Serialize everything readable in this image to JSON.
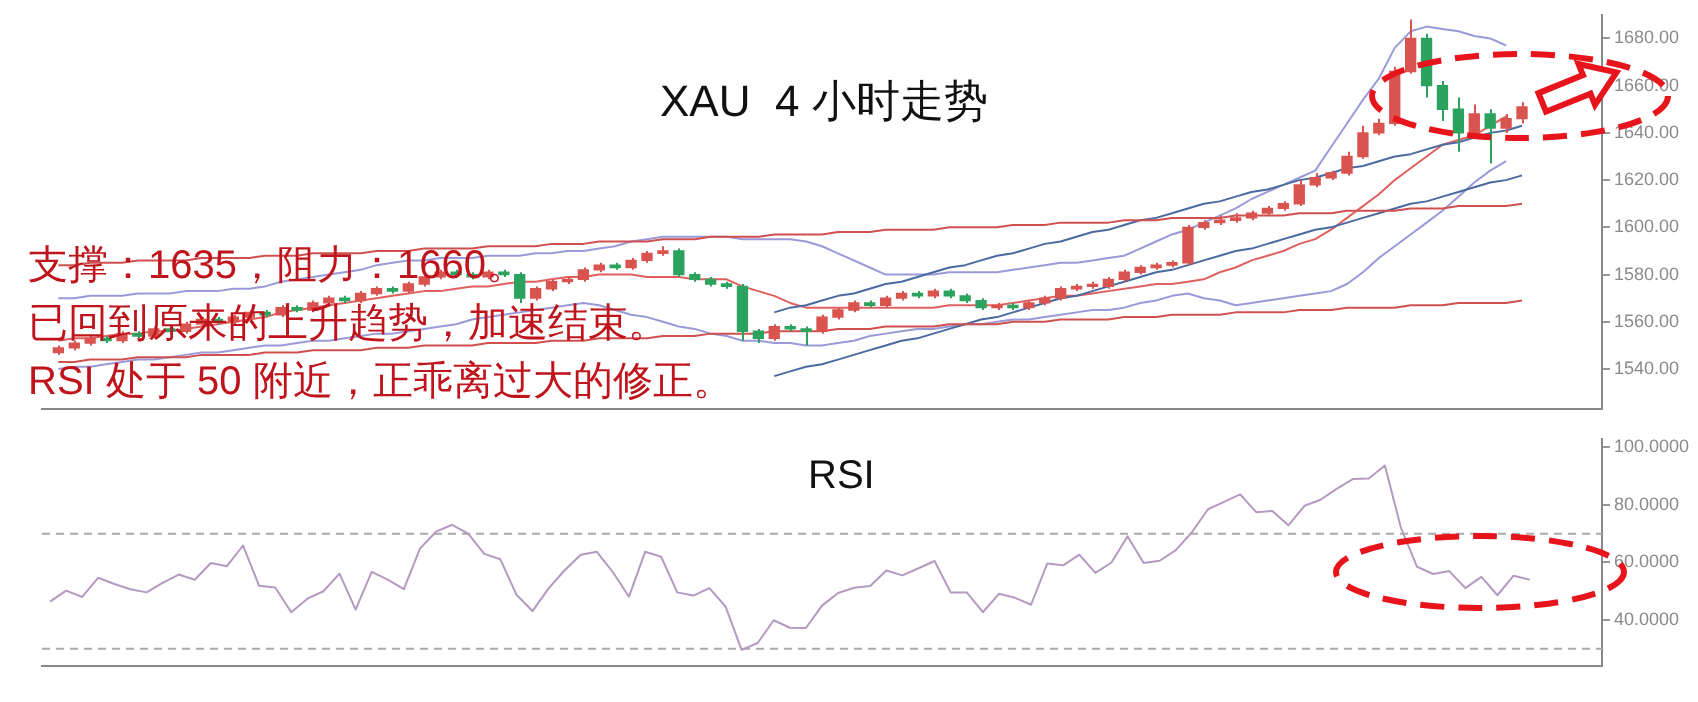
{
  "chart_data": [
    {
      "type": "candlestick",
      "title": "XAU  4 小时走势",
      "annotations": [
        "支撑：1635，阻力：1660。",
        "已回到原来的上升趋势，加速结束。",
        "RSI 处于 50 附近，正乖离过大的修正。"
      ],
      "categories": [
        null,
        null,
        null,
        null,
        null,
        null,
        null,
        null,
        null,
        null,
        null,
        null,
        null,
        null,
        null,
        null,
        null,
        null,
        null,
        null,
        null,
        null,
        null,
        null,
        null,
        null,
        null,
        null,
        null,
        null,
        null,
        null,
        null,
        null,
        null,
        null,
        null,
        null,
        null,
        null,
        null,
        null,
        null,
        null,
        null,
        null,
        null,
        null,
        null,
        null,
        null,
        null,
        null,
        null,
        null,
        null,
        null,
        null,
        null,
        null,
        null,
        null,
        null,
        null,
        null,
        null,
        null,
        null,
        null,
        null,
        null,
        null,
        null,
        null,
        null,
        null,
        null,
        null,
        null,
        null,
        null,
        null,
        null,
        null,
        null,
        null,
        null,
        null,
        null,
        null,
        null,
        null,
        null
      ],
      "ylim": [
        1523,
        1690
      ],
      "yticks": [
        {
          "value": 1540,
          "label": "1540.00"
        },
        {
          "value": 1560,
          "label": "1560.00"
        },
        {
          "value": 1580,
          "label": "1580.00"
        },
        {
          "value": 1600,
          "label": "1600.00"
        },
        {
          "value": 1620,
          "label": "1620.00"
        },
        {
          "value": 1640,
          "label": "1640.00"
        },
        {
          "value": 1660,
          "label": "1660.00"
        },
        {
          "value": 1680,
          "label": "1680.00"
        }
      ],
      "tick_labels": "y",
      "series": [
        {
          "type": "line",
          "color": "#d05050",
          "values": [
            1584,
            1584,
            1585,
            1585,
            1585,
            1586,
            1586,
            1586,
            1586,
            1587,
            1587,
            1587,
            1587,
            1588,
            1588,
            1588,
            1589,
            1589,
            1589,
            1589,
            1590,
            1590,
            1590,
            1591,
            1591,
            1591,
            1591,
            1592,
            1592,
            1592,
            1592,
            1593,
            1593,
            1593,
            1594,
            1594,
            1594,
            1594,
            1595,
            1595,
            1595,
            1596,
            1596,
            1596,
            1596,
            1597,
            1597,
            1597,
            1597,
            1598,
            1598,
            1598,
            1599,
            1599,
            1599,
            1599,
            1600,
            1600,
            1600,
            1600,
            1601,
            1601,
            1601,
            1602,
            1602,
            1602,
            1602,
            1603,
            1603,
            1603,
            1604,
            1604,
            1604,
            1604,
            1605,
            1605,
            1605,
            1605,
            1606,
            1606,
            1606,
            1607,
            1607,
            1607,
            1607,
            1608,
            1608,
            1608,
            1609,
            1609,
            1609,
            1609,
            1610
          ]
        },
        {
          "type": "line",
          "color": "#d05050",
          "values": [
            1543,
            1543,
            1544,
            1544,
            1544,
            1545,
            1545,
            1545,
            1545,
            1546,
            1546,
            1546,
            1546,
            1547,
            1547,
            1547,
            1548,
            1548,
            1548,
            1548,
            1549,
            1549,
            1549,
            1550,
            1550,
            1550,
            1550,
            1551,
            1551,
            1551,
            1551,
            1552,
            1552,
            1552,
            1553,
            1553,
            1553,
            1553,
            1554,
            1554,
            1554,
            1555,
            1555,
            1555,
            1555,
            1556,
            1556,
            1556,
            1556,
            1557,
            1557,
            1557,
            1558,
            1558,
            1558,
            1558,
            1559,
            1559,
            1559,
            1559,
            1560,
            1560,
            1560,
            1561,
            1561,
            1561,
            1561,
            1562,
            1562,
            1562,
            1563,
            1563,
            1563,
            1563,
            1564,
            1564,
            1564,
            1564,
            1565,
            1565,
            1565,
            1566,
            1566,
            1566,
            1566,
            1567,
            1567,
            1567,
            1568,
            1568,
            1568,
            1568,
            1569
          ]
        },
        {
          "type": "line",
          "color": "#4a6aa0",
          "values": [
            null,
            null,
            null,
            null,
            null,
            null,
            null,
            null,
            null,
            null,
            null,
            null,
            null,
            null,
            null,
            null,
            null,
            null,
            null,
            null,
            null,
            null,
            null,
            null,
            null,
            null,
            null,
            null,
            null,
            null,
            null,
            null,
            null,
            null,
            null,
            null,
            null,
            null,
            null,
            null,
            null,
            null,
            null,
            null,
            null,
            1564,
            1566,
            1567,
            1569,
            1571,
            1572,
            1574,
            1576,
            1577,
            1579,
            1581,
            1583,
            1584,
            1586,
            1588,
            1589,
            1591,
            1593,
            1594,
            1596,
            1598,
            1599,
            1601,
            1603,
            1604,
            1606,
            1608,
            1610,
            1611,
            1613,
            1615,
            1616,
            1618,
            1620,
            1621,
            1623,
            1625,
            1626,
            1628,
            1630,
            1631,
            1633,
            1635,
            1636,
            1638,
            1640,
            1641,
            1643
          ]
        },
        {
          "type": "line",
          "color": "#4a6aa0",
          "values": [
            null,
            null,
            null,
            null,
            null,
            null,
            null,
            null,
            null,
            null,
            null,
            null,
            null,
            null,
            null,
            null,
            null,
            null,
            null,
            null,
            null,
            null,
            null,
            null,
            null,
            null,
            null,
            null,
            null,
            null,
            null,
            null,
            null,
            null,
            null,
            null,
            null,
            null,
            null,
            null,
            null,
            null,
            null,
            null,
            null,
            1537,
            1539,
            1541,
            1542,
            1544,
            1546,
            1548,
            1550,
            1552,
            1553,
            1555,
            1557,
            1559,
            1561,
            1562,
            1564,
            1566,
            1568,
            1570,
            1571,
            1573,
            1575,
            1577,
            1579,
            1581,
            1582,
            1584,
            1586,
            1588,
            1590,
            1591,
            1593,
            1595,
            1597,
            1599,
            1600,
            1602,
            1604,
            1606,
            1608,
            1610,
            1611,
            1613,
            1615,
            1617,
            1619,
            1620,
            1622
          ]
        },
        {
          "type": "line",
          "color": "#9a9ad8",
          "values": [
            1570,
            1570,
            1571,
            1571,
            1571,
            1572,
            1572,
            1572,
            1573,
            1573,
            1573,
            1574,
            1574,
            1575,
            1577,
            1578,
            1579,
            1580,
            1581,
            1582,
            1584,
            1585,
            1586,
            1586,
            1587,
            1587,
            1587,
            1588,
            1588,
            1588,
            1589,
            1589,
            1590,
            1590,
            1591,
            1592,
            1594,
            1595,
            1596,
            1596,
            1596,
            1596,
            1596,
            1595,
            1595,
            1595,
            1595,
            1594,
            1592,
            1589,
            1586,
            1583,
            1580,
            1580,
            1580,
            1580,
            1581,
            1581,
            1581,
            1581,
            1582,
            1583,
            1584,
            1585,
            1585,
            1586,
            1587,
            1588,
            1591,
            1594,
            1597,
            1599,
            1602,
            1605,
            1608,
            1612,
            1615,
            1618,
            1621,
            1624,
            1634,
            1644,
            1654,
            1663,
            1676,
            1683,
            1685,
            1684,
            1683,
            1681,
            1680,
            1677,
            null
          ]
        },
        {
          "type": "line",
          "color": "#9a9ad8",
          "values": [
            1540,
            1541,
            1541,
            1542,
            1543,
            1544,
            1544,
            1545,
            1546,
            1547,
            1547,
            1548,
            1549,
            1550,
            1550,
            1551,
            1552,
            1552,
            1553,
            1554,
            1555,
            1555,
            1556,
            1557,
            1558,
            1559,
            1561,
            1562,
            1563,
            1564,
            1565,
            1566,
            1567,
            1568,
            1567,
            1565,
            1563,
            1562,
            1560,
            1558,
            1557,
            1555,
            1554,
            1552,
            1552,
            1551,
            1551,
            1550,
            1550,
            1551,
            1552,
            1554,
            1555,
            1556,
            1557,
            1557,
            1558,
            1559,
            1559,
            1560,
            1561,
            1561,
            1562,
            1563,
            1564,
            1565,
            1565,
            1566,
            1568,
            1569,
            1571,
            1572,
            1570,
            1569,
            1567,
            1568,
            1569,
            1570,
            1571,
            1572,
            1573,
            1576,
            1581,
            1587,
            1592,
            1597,
            1602,
            1607,
            1613,
            1619,
            1624,
            1628,
            null
          ]
        },
        {
          "type": "line",
          "color": "#e06060",
          "values": [
            1552,
            1553,
            1553,
            1554,
            1555,
            1555,
            1556,
            1556,
            1557,
            1558,
            1559,
            1560,
            1561,
            1562,
            1564,
            1565,
            1566,
            1567,
            1568,
            1569,
            1570,
            1571,
            1572,
            1573,
            1573,
            1574,
            1575,
            1575,
            1576,
            1577,
            1577,
            1578,
            1579,
            1579,
            1580,
            1580,
            1580,
            1579,
            1579,
            1579,
            1578,
            1578,
            1578,
            1575,
            1573,
            1571,
            1568,
            1566,
            1566,
            1566,
            1566,
            1566,
            1566,
            1566,
            1566,
            1566,
            1567,
            1567,
            1567,
            1567,
            1568,
            1569,
            1570,
            1571,
            1571,
            1572,
            1573,
            1574,
            1575,
            1576,
            1576,
            1577,
            1578,
            1581,
            1583,
            1586,
            1588,
            1590,
            1593,
            1595,
            1599,
            1604,
            1609,
            1614,
            1620,
            1625,
            1630,
            1635,
            1637,
            1639,
            1643,
            1647,
            null
          ]
        },
        {
          "ohlc": [
            [
              1547,
              1550,
              1546,
              1549
            ],
            [
              1549,
              1552,
              1548,
              1551
            ],
            [
              1551,
              1554,
              1550,
              1553
            ],
            [
              1553,
              1554,
              1551,
              1552
            ],
            [
              1552,
              1556,
              1551,
              1555
            ],
            [
              1555,
              1556,
              1553,
              1554
            ],
            [
              1554,
              1558,
              1553,
              1557
            ],
            [
              1557,
              1558,
              1555,
              1556
            ],
            [
              1556,
              1560,
              1555,
              1559
            ],
            [
              1559,
              1562,
              1558,
              1561
            ],
            [
              1561,
              1562,
              1559,
              1560
            ],
            [
              1560,
              1563,
              1559,
              1562
            ],
            [
              1562,
              1565,
              1561,
              1564
            ],
            [
              1564,
              1565,
              1562,
              1563
            ],
            [
              1563,
              1567,
              1562,
              1566
            ],
            [
              1566,
              1567,
              1564,
              1565
            ],
            [
              1565,
              1569,
              1564,
              1568
            ],
            [
              1568,
              1571,
              1567,
              1570
            ],
            [
              1570,
              1571,
              1568,
              1569
            ],
            [
              1569,
              1573,
              1568,
              1572
            ],
            [
              1572,
              1575,
              1571,
              1574
            ],
            [
              1574,
              1575,
              1572,
              1573
            ],
            [
              1573,
              1577,
              1572,
              1576
            ],
            [
              1576,
              1580,
              1575,
              1579
            ],
            [
              1579,
              1582,
              1578,
              1581
            ],
            [
              1581,
              1582,
              1579,
              1580
            ],
            [
              1580,
              1581,
              1578,
              1579
            ],
            [
              1579,
              1582,
              1578,
              1581
            ],
            [
              1581,
              1582,
              1579,
              1580
            ],
            [
              1580,
              1581,
              1568,
              1570
            ],
            [
              1570,
              1575,
              1569,
              1574
            ],
            [
              1574,
              1578,
              1573,
              1577
            ],
            [
              1577,
              1579,
              1576,
              1578
            ],
            [
              1578,
              1583,
              1577,
              1582
            ],
            [
              1582,
              1585,
              1581,
              1584
            ],
            [
              1584,
              1585,
              1582,
              1583
            ],
            [
              1583,
              1587,
              1582,
              1586
            ],
            [
              1586,
              1590,
              1585,
              1589
            ],
            [
              1589,
              1592,
              1588,
              1590
            ],
            [
              1590,
              1591,
              1579,
              1580
            ],
            [
              1580,
              1581,
              1577,
              1578
            ],
            [
              1578,
              1579,
              1575,
              1576
            ],
            [
              1576,
              1577,
              1574,
              1575
            ],
            [
              1575,
              1576,
              1552,
              1556
            ],
            [
              1556,
              1557,
              1551,
              1553
            ],
            [
              1553,
              1559,
              1552,
              1558
            ],
            [
              1558,
              1559,
              1556,
              1557
            ],
            [
              1557,
              1558,
              1550,
              1556
            ],
            [
              1556,
              1563,
              1555,
              1562
            ],
            [
              1562,
              1566,
              1561,
              1565
            ],
            [
              1565,
              1569,
              1564,
              1568
            ],
            [
              1568,
              1569,
              1566,
              1567
            ],
            [
              1567,
              1571,
              1566,
              1570
            ],
            [
              1570,
              1573,
              1569,
              1572
            ],
            [
              1572,
              1573,
              1570,
              1571
            ],
            [
              1571,
              1574,
              1570,
              1573
            ],
            [
              1573,
              1574,
              1570,
              1571
            ],
            [
              1571,
              1572,
              1568,
              1569
            ],
            [
              1569,
              1570,
              1565,
              1566
            ],
            [
              1566,
              1568,
              1565,
              1567
            ],
            [
              1567,
              1568,
              1565,
              1566
            ],
            [
              1566,
              1569,
              1565,
              1568
            ],
            [
              1568,
              1571,
              1567,
              1570
            ],
            [
              1570,
              1575,
              1569,
              1574
            ],
            [
              1574,
              1576,
              1573,
              1575
            ],
            [
              1575,
              1577,
              1574,
              1575
            ],
            [
              1575,
              1579,
              1574,
              1578
            ],
            [
              1578,
              1582,
              1577,
              1581
            ],
            [
              1581,
              1584,
              1580,
              1583
            ],
            [
              1583,
              1585,
              1582,
              1584
            ],
            [
              1584,
              1586,
              1583,
              1585
            ],
            [
              1585,
              1601,
              1584,
              1600
            ],
            [
              1600,
              1603,
              1599,
              1602
            ],
            [
              1602,
              1605,
              1601,
              1603
            ],
            [
              1603,
              1606,
              1602,
              1604
            ],
            [
              1604,
              1607,
              1603,
              1606
            ],
            [
              1606,
              1609,
              1605,
              1608
            ],
            [
              1608,
              1611,
              1607,
              1610
            ],
            [
              1610,
              1620,
              1609,
              1618
            ],
            [
              1618,
              1623,
              1617,
              1621
            ],
            [
              1621,
              1624,
              1620,
              1623
            ],
            [
              1623,
              1632,
              1622,
              1630
            ],
            [
              1630,
              1643,
              1629,
              1640
            ],
            [
              1640,
              1646,
              1639,
              1644
            ],
            [
              1644,
              1668,
              1643,
              1666
            ],
            [
              1666,
              1688,
              1665,
              1680
            ],
            [
              1680,
              1682,
              1655,
              1660
            ],
            [
              1660,
              1662,
              1645,
              1650
            ],
            [
              1650,
              1655,
              1632,
              1640
            ],
            [
              1640,
              1652,
              1638,
              1648
            ],
            [
              1648,
              1650,
              1627,
              1642
            ],
            [
              1642,
              1648,
              1640,
              1646
            ],
            [
              1646,
              1653,
              1644,
              1651
            ]
          ],
          "colors": [
            "#d9534f",
            "#d9534f",
            "#d9534f",
            "#2ca25f",
            "#d9534f",
            "#2ca25f",
            "#d9534f",
            "#2ca25f",
            "#d9534f",
            "#d9534f",
            "#2ca25f",
            "#d9534f",
            "#d9534f",
            "#2ca25f",
            "#d9534f",
            "#2ca25f",
            "#d9534f",
            "#d9534f",
            "#2ca25f",
            "#d9534f",
            "#d9534f",
            "#2ca25f",
            "#d9534f",
            "#d9534f",
            "#d9534f",
            "#2ca25f",
            "#2ca25f",
            "#d9534f",
            "#2ca25f",
            "#2ca25f",
            "#d9534f",
            "#d9534f",
            "#d9534f",
            "#d9534f",
            "#d9534f",
            "#2ca25f",
            "#d9534f",
            "#d9534f",
            "#d9534f",
            "#2ca25f",
            "#2ca25f",
            "#2ca25f",
            "#2ca25f",
            "#2ca25f",
            "#2ca25f",
            "#d9534f",
            "#2ca25f",
            "#2ca25f",
            "#d9534f",
            "#d9534f",
            "#d9534f",
            "#2ca25f",
            "#d9534f",
            "#d9534f",
            "#2ca25f",
            "#d9534f",
            "#2ca25f",
            "#2ca25f",
            "#2ca25f",
            "#d9534f",
            "#2ca25f",
            "#d9534f",
            "#d9534f",
            "#d9534f",
            "#d9534f",
            "#d9534f",
            "#d9534f",
            "#d9534f",
            "#d9534f",
            "#d9534f",
            "#d9534f",
            "#d9534f",
            "#d9534f",
            "#d9534f",
            "#d9534f",
            "#d9534f",
            "#d9534f",
            "#d9534f",
            "#d9534f",
            "#d9534f",
            "#d9534f",
            "#d9534f",
            "#d9534f",
            "#d9534f",
            "#d9534f",
            "#d9534f",
            "#2ca25f",
            "#2ca25f",
            "#2ca25f",
            "#d9534f",
            "#2ca25f",
            "#d9534f",
            "#d9534f"
          ]
        }
      ]
    },
    {
      "type": "line",
      "title": "RSI",
      "ylim": [
        24,
        103
      ],
      "categories": [
        null,
        null,
        null,
        null,
        null,
        null,
        null,
        null,
        null,
        null,
        null,
        null,
        null,
        null,
        null,
        null,
        null,
        null,
        null,
        null,
        null,
        null,
        null,
        null,
        null,
        null,
        null,
        null,
        null,
        null,
        null,
        null,
        null,
        null,
        null,
        null,
        null,
        null,
        null,
        null,
        null,
        null,
        null,
        null,
        null,
        null,
        null,
        null,
        null,
        null,
        null,
        null,
        null,
        null,
        null,
        null,
        null,
        null,
        null,
        null,
        null,
        null,
        null,
        null,
        null,
        null,
        null,
        null,
        null,
        null,
        null,
        null,
        null,
        null,
        null,
        null,
        null,
        null,
        null,
        null,
        null,
        null,
        null,
        null,
        null,
        null,
        null,
        null,
        null,
        null,
        null,
        null,
        null
      ],
      "yticks": [
        {
          "value": 40,
          "label": "40.0000"
        },
        {
          "value": 60,
          "label": "60.0000"
        },
        {
          "value": 80,
          "label": "80.0000"
        },
        {
          "value": 100,
          "label": "100.0000"
        }
      ],
      "tick_labels": "y",
      "ref_lines": [
        {
          "axis": "y",
          "value": 70,
          "color": "#aaaaaa",
          "line_style": "dashed"
        },
        {
          "axis": "y",
          "value": 30,
          "color": "#aaaaaa",
          "line_style": "dashed"
        }
      ],
      "series": [
        {
          "color": "#b49ac0",
          "values": [
            46.4,
            50.2,
            48,
            54.7,
            52.5,
            50.7,
            49.6,
            52.9,
            55.8,
            54,
            59.8,
            58.7,
            65.9,
            51.9,
            51.3,
            42.7,
            47.4,
            50,
            56.1,
            43.6,
            56.7,
            54,
            50.7,
            64.8,
            70.7,
            73.1,
            70,
            63,
            61.1,
            48.8,
            43.1,
            51,
            57.3,
            62.7,
            63.7,
            56.6,
            48.1,
            63.7,
            62,
            49.6,
            48.5,
            51.1,
            44.7,
            29.6,
            32,
            39.9,
            37.3,
            37.2,
            45,
            49.4,
            51.2,
            51.8,
            57.2,
            55.5,
            58,
            60.5,
            49.6,
            49.6,
            42.7,
            49.1,
            47.7,
            45.3,
            59.6,
            59,
            62.7,
            56.4,
            60,
            69.1,
            59.8,
            60.6,
            64.3,
            70.5,
            78.5,
            81.1,
            83.7,
            77.5,
            77.9,
            72.9,
            79.7,
            81.8,
            85.6,
            89,
            89.2,
            93.7,
            72,
            58.5,
            56,
            57,
            51.1,
            55,
            48.6,
            55.4,
            54
          ]
        }
      ]
    }
  ]
}
